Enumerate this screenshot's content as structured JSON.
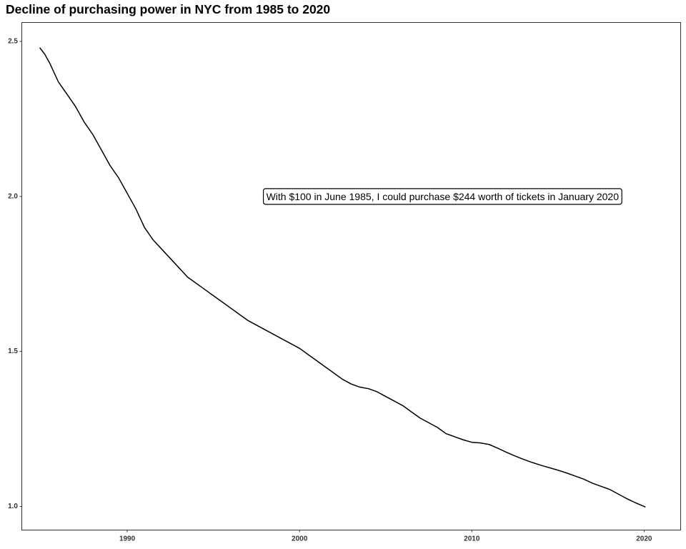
{
  "chart_data": {
    "type": "line",
    "title": "Decline of purchasing power in NYC from 1985 to 2020",
    "xlabel": "",
    "ylabel": "",
    "xlim": [
      1983.9,
      2022.1
    ],
    "ylim": [
      0.925,
      2.56
    ],
    "x_ticks": [
      1990,
      2000,
      2010,
      2020
    ],
    "y_ticks": [
      1.0,
      1.5,
      2.0,
      2.5
    ],
    "x_tick_labels": [
      "1990",
      "2000",
      "2010",
      "2020"
    ],
    "y_tick_labels": [
      "1.0",
      "1.5",
      "2.0",
      "2.5"
    ],
    "grid": false,
    "legend": "none",
    "annotation": {
      "text": "With $100 in June 1985, I could purchase  $244 worth of tickets in January 2020",
      "x": 2008.3,
      "y": 2.0
    },
    "series": [
      {
        "color": "#000000",
        "x": [
          1984.92,
          1985.2,
          1985.5,
          1986.0,
          1986.5,
          1987.0,
          1987.5,
          1988.0,
          1988.5,
          1989.0,
          1989.5,
          1990.0,
          1990.5,
          1991.0,
          1991.5,
          1992.0,
          1992.5,
          1993.0,
          1993.5,
          1994.0,
          1994.5,
          1995.0,
          1995.5,
          1996.0,
          1996.5,
          1997.0,
          1997.5,
          1998.0,
          1998.5,
          1999.0,
          1999.5,
          2000.0,
          2000.5,
          2001.0,
          2001.5,
          2002.0,
          2002.5,
          2003.0,
          2003.5,
          2004.0,
          2004.5,
          2005.0,
          2005.5,
          2006.0,
          2006.5,
          2007.0,
          2007.5,
          2008.0,
          2008.5,
          2009.0,
          2009.5,
          2010.0,
          2010.5,
          2011.0,
          2011.5,
          2012.0,
          2012.5,
          2013.0,
          2013.5,
          2014.0,
          2014.5,
          2015.0,
          2015.5,
          2016.0,
          2016.5,
          2017.0,
          2017.5,
          2018.0,
          2018.5,
          2019.0,
          2019.5,
          2020.08
        ],
        "y": [
          2.48,
          2.46,
          2.43,
          2.37,
          2.33,
          2.29,
          2.24,
          2.2,
          2.15,
          2.1,
          2.06,
          2.01,
          1.96,
          1.9,
          1.86,
          1.83,
          1.8,
          1.77,
          1.74,
          1.72,
          1.7,
          1.68,
          1.66,
          1.64,
          1.62,
          1.6,
          1.585,
          1.57,
          1.555,
          1.54,
          1.525,
          1.51,
          1.49,
          1.47,
          1.45,
          1.43,
          1.41,
          1.395,
          1.385,
          1.38,
          1.37,
          1.355,
          1.34,
          1.325,
          1.305,
          1.285,
          1.27,
          1.255,
          1.235,
          1.225,
          1.215,
          1.207,
          1.205,
          1.2,
          1.188,
          1.175,
          1.163,
          1.152,
          1.142,
          1.133,
          1.125,
          1.117,
          1.108,
          1.098,
          1.088,
          1.075,
          1.065,
          1.055,
          1.04,
          1.025,
          1.012,
          0.998
        ]
      }
    ]
  }
}
